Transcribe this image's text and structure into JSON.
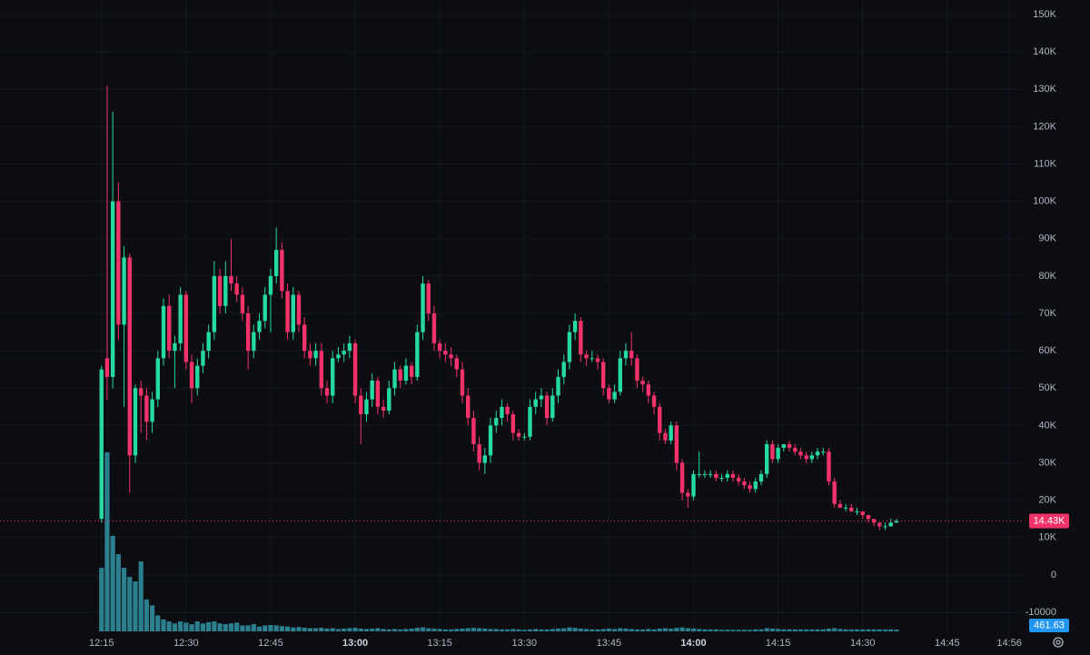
{
  "chart_data": {
    "type": "candlestick",
    "up_color": "#26d9a3",
    "down_color": "#f2336a",
    "volume_color": "#2b7f8e",
    "grid": true,
    "xlim": [
      -18,
      163.4
    ],
    "ylim": [
      -15600,
      153900
    ],
    "xticks": [
      {
        "value": 0,
        "label": "12:15"
      },
      {
        "value": 15,
        "label": "12:30"
      },
      {
        "value": 30,
        "label": "12:45"
      },
      {
        "value": 45,
        "label": "13:00",
        "bold": true
      },
      {
        "value": 60,
        "label": "13:15"
      },
      {
        "value": 75,
        "label": "13:30"
      },
      {
        "value": 90,
        "label": "13:45"
      },
      {
        "value": 105,
        "label": "14:00",
        "bold": true
      },
      {
        "value": 120,
        "label": "14:15"
      },
      {
        "value": 135,
        "label": "14:30"
      },
      {
        "value": 150,
        "label": "14:45"
      },
      {
        "value": 161,
        "label": "14:56"
      }
    ],
    "yticks": [
      {
        "value": 150000,
        "label": "150K"
      },
      {
        "value": 140000,
        "label": "140K"
      },
      {
        "value": 130000,
        "label": "130K"
      },
      {
        "value": 120000,
        "label": "120K"
      },
      {
        "value": 110000,
        "label": "110K"
      },
      {
        "value": 100000,
        "label": "100K"
      },
      {
        "value": 90000,
        "label": "90K"
      },
      {
        "value": 80000,
        "label": "80K"
      },
      {
        "value": 70000,
        "label": "70K"
      },
      {
        "value": 60000,
        "label": "60K"
      },
      {
        "value": 50000,
        "label": "50K"
      },
      {
        "value": 40000,
        "label": "40K"
      },
      {
        "value": 30000,
        "label": "30K"
      },
      {
        "value": 20000,
        "label": "20K"
      },
      {
        "value": 10000,
        "label": "10K"
      },
      0,
      -10000
    ],
    "last_price_label": "14.43K",
    "candles": [
      [
        15000,
        56000,
        14000,
        55000
      ],
      [
        58000,
        131000,
        47000,
        53000
      ],
      [
        53000,
        124000,
        50000,
        100000
      ],
      [
        100000,
        105000,
        63000,
        67000
      ],
      [
        67000,
        88000,
        45000,
        85000
      ],
      [
        85000,
        86000,
        22000,
        32000
      ],
      [
        32000,
        51000,
        30000,
        50000
      ],
      [
        50000,
        52000,
        38000,
        48000
      ],
      [
        48000,
        50000,
        36000,
        41000
      ],
      [
        41000,
        49000,
        38000,
        47000
      ],
      [
        47000,
        60000,
        45000,
        58000
      ],
      [
        58000,
        74000,
        56000,
        72000
      ],
      [
        72000,
        75000,
        58000,
        60000
      ],
      [
        60000,
        64000,
        50000,
        62000
      ],
      [
        62000,
        77000,
        60000,
        75000
      ],
      [
        75000,
        76000,
        55000,
        57000
      ],
      [
        57000,
        59000,
        46000,
        50000
      ],
      [
        50000,
        58000,
        48000,
        56000
      ],
      [
        56000,
        62000,
        54000,
        60000
      ],
      [
        60000,
        67000,
        58000,
        65000
      ],
      [
        65000,
        84000,
        63000,
        80000
      ],
      [
        80000,
        82000,
        70000,
        72000
      ],
      [
        72000,
        84000,
        70000,
        80000
      ],
      [
        80000,
        90000,
        76000,
        78000
      ],
      [
        78000,
        80000,
        73000,
        75000
      ],
      [
        75000,
        77000,
        68000,
        70000
      ],
      [
        70000,
        72000,
        55000,
        60000
      ],
      [
        60000,
        67000,
        58000,
        65000
      ],
      [
        65000,
        70000,
        63000,
        68000
      ],
      [
        68000,
        77000,
        66000,
        75000
      ],
      [
        75000,
        82000,
        65000,
        80000
      ],
      [
        80000,
        93000,
        78000,
        87000
      ],
      [
        87000,
        89000,
        74000,
        76000
      ],
      [
        76000,
        78000,
        63000,
        65000
      ],
      [
        65000,
        77000,
        63000,
        75000
      ],
      [
        75000,
        76000,
        65000,
        67000
      ],
      [
        67000,
        69000,
        58000,
        60000
      ],
      [
        60000,
        62000,
        56000,
        58000
      ],
      [
        58000,
        62000,
        56000,
        60000
      ],
      [
        60000,
        62000,
        48000,
        50000
      ],
      [
        50000,
        52000,
        46000,
        48000
      ],
      [
        48000,
        60000,
        46000,
        58000
      ],
      [
        58000,
        61000,
        57000,
        59000
      ],
      [
        59000,
        62000,
        57000,
        60000
      ],
      [
        60000,
        64000,
        58000,
        62000
      ],
      [
        62000,
        63000,
        46000,
        48000
      ],
      [
        48000,
        50000,
        35000,
        43000
      ],
      [
        43000,
        49000,
        41000,
        47000
      ],
      [
        47000,
        54000,
        45000,
        52000
      ],
      [
        52000,
        53000,
        43000,
        45000
      ],
      [
        45000,
        47000,
        42000,
        44000
      ],
      [
        44000,
        52000,
        43000,
        50000
      ],
      [
        50000,
        57000,
        48000,
        55000
      ],
      [
        55000,
        56000,
        50000,
        52000
      ],
      [
        52000,
        58000,
        51000,
        56000
      ],
      [
        56000,
        57000,
        51000,
        53000
      ],
      [
        53000,
        67000,
        52000,
        65000
      ],
      [
        65000,
        80000,
        63000,
        78000
      ],
      [
        78000,
        79000,
        68000,
        70000
      ],
      [
        70000,
        72000,
        60000,
        62000
      ],
      [
        62000,
        63000,
        58000,
        60000
      ],
      [
        60000,
        62000,
        57000,
        59000
      ],
      [
        59000,
        61000,
        56000,
        58000
      ],
      [
        58000,
        59000,
        53000,
        55000
      ],
      [
        55000,
        57000,
        46000,
        48000
      ],
      [
        48000,
        50000,
        40000,
        42000
      ],
      [
        42000,
        44000,
        33000,
        35000
      ],
      [
        35000,
        37000,
        28000,
        30000
      ],
      [
        30000,
        34000,
        27000,
        32000
      ],
      [
        32000,
        42000,
        30000,
        40000
      ],
      [
        40000,
        44000,
        38000,
        42000
      ],
      [
        42000,
        47000,
        40000,
        45000
      ],
      [
        45000,
        46000,
        41000,
        43000
      ],
      [
        43000,
        44000,
        36000,
        38000
      ],
      [
        38000,
        39000,
        36000,
        37000
      ],
      [
        37000,
        38000,
        36000,
        37000
      ],
      [
        37000,
        47000,
        36000,
        45000
      ],
      [
        45000,
        49000,
        43000,
        47000
      ],
      [
        47000,
        50000,
        45000,
        48000
      ],
      [
        48000,
        49000,
        40000,
        42000
      ],
      [
        42000,
        50000,
        41000,
        48000
      ],
      [
        48000,
        55000,
        46000,
        53000
      ],
      [
        53000,
        59000,
        51000,
        57000
      ],
      [
        57000,
        67000,
        55000,
        65000
      ],
      [
        65000,
        70000,
        63000,
        68000
      ],
      [
        68000,
        69000,
        57000,
        59000
      ],
      [
        59000,
        60000,
        56000,
        58000
      ],
      [
        58000,
        60000,
        57000,
        58000
      ],
      [
        58000,
        59000,
        55000,
        57000
      ],
      [
        57000,
        58000,
        48000,
        50000
      ],
      [
        50000,
        51000,
        46000,
        47000
      ],
      [
        47000,
        51000,
        46000,
        49000
      ],
      [
        49000,
        60000,
        48000,
        58000
      ],
      [
        58000,
        62000,
        56000,
        60000
      ],
      [
        60000,
        65000,
        56000,
        58000
      ],
      [
        58000,
        59000,
        50000,
        52000
      ],
      [
        52000,
        53000,
        49000,
        51000
      ],
      [
        51000,
        52000,
        46000,
        48000
      ],
      [
        48000,
        49000,
        43000,
        45000
      ],
      [
        45000,
        46000,
        36000,
        38000
      ],
      [
        38000,
        39000,
        35000,
        36000
      ],
      [
        36000,
        41000,
        35000,
        40000
      ],
      [
        40000,
        41000,
        28000,
        30000
      ],
      [
        30000,
        31000,
        20000,
        22000
      ],
      [
        22000,
        23000,
        18000,
        21000
      ],
      [
        21000,
        28000,
        20000,
        27000
      ],
      [
        27000,
        33000,
        26000,
        27000
      ],
      [
        27000,
        28000,
        26000,
        27000
      ],
      [
        27000,
        28000,
        26000,
        27000
      ],
      [
        27000,
        28000,
        25000,
        26000
      ],
      [
        26000,
        27000,
        25000,
        26000
      ],
      [
        26000,
        28000,
        25000,
        27000
      ],
      [
        27000,
        28000,
        25000,
        26000
      ],
      [
        26000,
        27000,
        24000,
        25000
      ],
      [
        25000,
        26000,
        23000,
        24000
      ],
      [
        24000,
        25000,
        22000,
        23000
      ],
      [
        23000,
        26000,
        22000,
        25000
      ],
      [
        25000,
        28000,
        24000,
        27000
      ],
      [
        27000,
        36000,
        26000,
        35000
      ],
      [
        35000,
        36000,
        30000,
        31000
      ],
      [
        31000,
        35000,
        30000,
        34000
      ],
      [
        34000,
        35000,
        33000,
        35000
      ],
      [
        35000,
        36000,
        33000,
        34000
      ],
      [
        34000,
        35000,
        32000,
        33000
      ],
      [
        33000,
        34000,
        31000,
        32000
      ],
      [
        32000,
        33000,
        30000,
        31000
      ],
      [
        31000,
        33000,
        30000,
        32000
      ],
      [
        32000,
        34000,
        31000,
        33000
      ],
      [
        33000,
        34000,
        32000,
        33000
      ],
      [
        33000,
        34000,
        24000,
        25000
      ],
      [
        25000,
        26000,
        18000,
        19000
      ],
      [
        19000,
        20000,
        18000,
        18000
      ],
      [
        18000,
        19000,
        17000,
        18000
      ],
      [
        18000,
        19000,
        17000,
        17000
      ],
      [
        17000,
        18000,
        16000,
        17000
      ],
      [
        17000,
        17000,
        15000,
        16000
      ],
      [
        16000,
        16000,
        14000,
        15000
      ],
      [
        15000,
        15000,
        13000,
        14000
      ],
      [
        14000,
        14000,
        12000,
        13000
      ],
      [
        13000,
        14000,
        12000,
        13000
      ],
      [
        13000,
        15000,
        13000,
        14000
      ],
      [
        14000,
        15000,
        14000,
        14430
      ]
    ],
    "volume": [
      15900,
      44800,
      23900,
      19300,
      15900,
      13600,
      12500,
      17500,
      8000,
      6500,
      4000,
      3000,
      2500,
      2000,
      2500,
      2200,
      1800,
      2500,
      2000,
      2300,
      2500,
      2000,
      1800,
      2000,
      2200,
      1500,
      1500,
      1800,
      1200,
      1500,
      1600,
      1500,
      1300,
      1200,
      1000,
      1100,
      900,
      800,
      800,
      900,
      700,
      800,
      600,
      700,
      800,
      900,
      700,
      600,
      700,
      800,
      600,
      500,
      600,
      500,
      600,
      700,
      900,
      1000,
      800,
      700,
      600,
      500,
      500,
      600,
      700,
      800,
      900,
      800,
      700,
      600,
      600,
      500,
      500,
      600,
      500,
      400,
      500,
      600,
      500,
      500,
      600,
      700,
      800,
      1000,
      900,
      700,
      600,
      500,
      500,
      600,
      700,
      600,
      800,
      700,
      600,
      500,
      500,
      600,
      500,
      700,
      800,
      700,
      900,
      1000,
      800,
      700,
      600,
      500,
      500,
      500,
      400,
      400,
      400,
      400,
      400,
      400,
      500,
      500,
      800,
      700,
      600,
      500,
      500,
      500,
      500,
      500,
      500,
      500,
      500,
      700,
      800,
      600,
      500,
      500,
      500,
      500,
      500,
      500,
      500,
      500,
      500,
      461.63
    ]
  }
}
